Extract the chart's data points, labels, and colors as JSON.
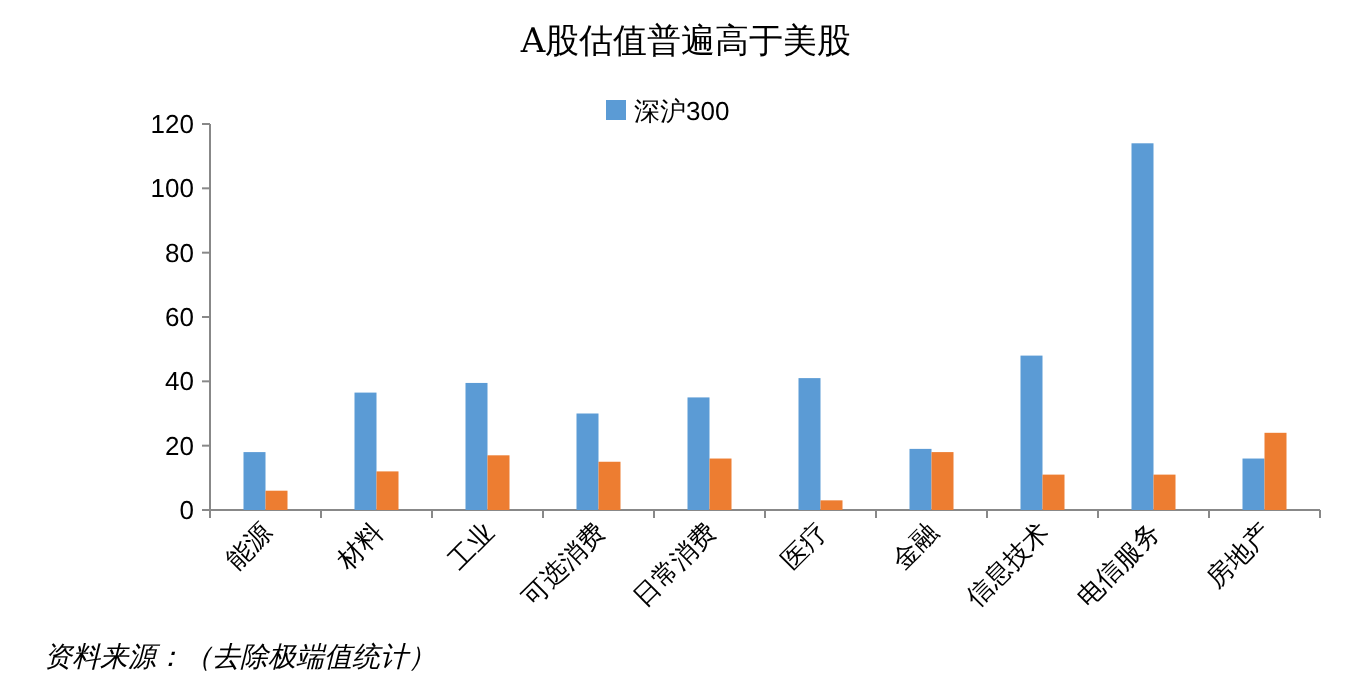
{
  "chart_data": {
    "type": "bar",
    "title": "A股估值普遍高于美股",
    "categories": [
      "能源",
      "材料",
      "工业",
      "可选消费",
      "日常消费",
      "医疗",
      "金融",
      "信息技术",
      "电信服务",
      "房地产"
    ],
    "series": [
      {
        "name": "深沪300",
        "color": "#5b9bd5",
        "values": [
          18,
          36.5,
          39.5,
          30,
          35,
          41,
          19,
          48,
          114,
          16
        ]
      },
      {
        "color": "#ed7d31",
        "values": [
          6,
          12,
          17,
          15,
          16,
          3,
          18,
          11,
          11,
          24
        ]
      }
    ],
    "ylim": [
      0,
      120
    ],
    "yticks": [
      0,
      20,
      40,
      60,
      80,
      100,
      120
    ],
    "grid": false,
    "legend": "top",
    "annotations": [
      "资料来源：（去除极端值统计）"
    ]
  }
}
